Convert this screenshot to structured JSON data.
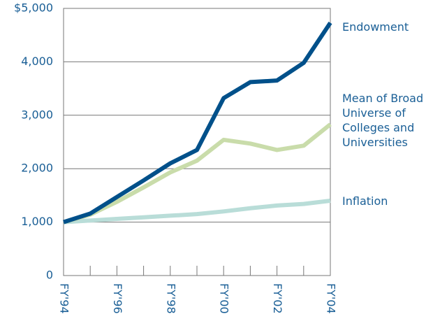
{
  "chart_data": {
    "type": "line",
    "categories": [
      "FY'94",
      null,
      "FY'96",
      null,
      "FY'98",
      null,
      "FY'00",
      null,
      "FY'02",
      null,
      "FY'04"
    ],
    "series": [
      {
        "name": "Inflation",
        "color": "#b9ddd8",
        "values": [
          1000,
          1030,
          1060,
          1090,
          1120,
          1150,
          1200,
          1260,
          1310,
          1340,
          1400
        ]
      },
      {
        "name": "Mean of Broad Universe of Colleges and Universities",
        "color": "#c9dcaa",
        "values": [
          1000,
          1140,
          1380,
          1650,
          1930,
          2150,
          2540,
          2470,
          2350,
          2430,
          2830
        ]
      },
      {
        "name": "Endowment",
        "color": "#00508a",
        "values": [
          1000,
          1160,
          1470,
          1780,
          2100,
          2350,
          3320,
          3620,
          3650,
          3980,
          4730
        ]
      }
    ],
    "ylim": [
      0,
      5000
    ],
    "yticks": [
      0,
      {
        "value": 1000,
        "label": "1,000"
      },
      {
        "value": 2000,
        "label": "2,000"
      },
      {
        "value": 3000,
        "label": "3,000"
      },
      {
        "value": 4000,
        "label": "4,000"
      },
      {
        "value": 5000,
        "label": "$5,000"
      }
    ],
    "grid": true
  }
}
